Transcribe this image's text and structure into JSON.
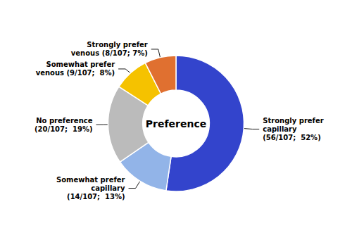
{
  "chart_data": {
    "type": "pie",
    "title": "Preference",
    "categories": [
      "Strongly prefer\ncapillary\n(56/107;  52%)",
      "Somewhat prefer\ncapillary\n(14/107;  13%)",
      "No preference\n(20/107;  19%)",
      "Somewhat prefer\nvenous (9/107;  8%)",
      "Strongly prefer\nvenous (8/107; 7%)"
    ],
    "values": [
      56,
      14,
      20,
      9,
      8
    ],
    "colors": [
      "#3344CC",
      "#92B4E8",
      "#BBBBBB",
      "#F5C200",
      "#E07030"
    ]
  }
}
